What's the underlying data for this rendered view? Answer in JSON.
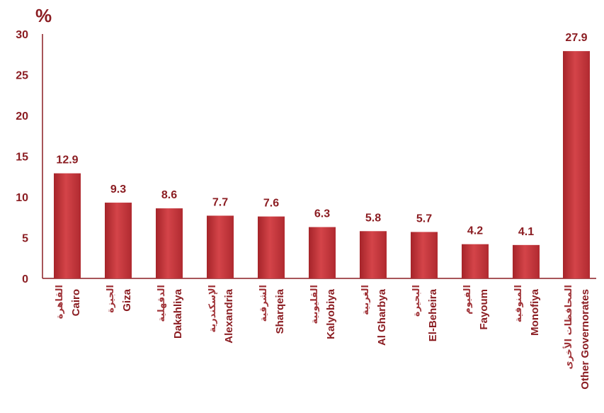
{
  "chart_data": {
    "type": "bar",
    "unit_label": "%",
    "ylim": [
      0,
      30
    ],
    "yticks": [
      0,
      5,
      10,
      15,
      20,
      25,
      30
    ],
    "grid": false,
    "categories": [
      {
        "en": "Cairo",
        "ar": "القاهرة"
      },
      {
        "en": "Giza",
        "ar": "الجيزة"
      },
      {
        "en": "Dakahliya",
        "ar": "الدقهلية"
      },
      {
        "en": "Alexandria",
        "ar": "الإسكندرية"
      },
      {
        "en": "Sharqeia",
        "ar": "الشرقية"
      },
      {
        "en": "Kalyobiya",
        "ar": "القليوبية"
      },
      {
        "en": "Al Gharbya",
        "ar": "الغربية"
      },
      {
        "en": "El-Beheira",
        "ar": "البحيرة"
      },
      {
        "en": "Fayoum",
        "ar": "الفيوم"
      },
      {
        "en": "Monofiya",
        "ar": "المنوفية"
      },
      {
        "en": "Other Governorates",
        "ar": "المحافظات الأخرى"
      }
    ],
    "values": [
      12.9,
      9.3,
      8.6,
      7.7,
      7.6,
      6.3,
      5.8,
      5.7,
      4.2,
      4.1,
      27.9
    ],
    "value_labels": [
      "12.9",
      "9.3",
      "8.6",
      "7.7",
      "7.6",
      "6.3",
      "5.8",
      "5.7",
      "4.2",
      "4.1",
      "27.9"
    ],
    "colors": {
      "bar_light": "#d94a4f",
      "bar_mid": "#c4343a",
      "bar_dark": "#9e2328",
      "text": "#8b1d22",
      "axis": "#8b1d22"
    }
  }
}
